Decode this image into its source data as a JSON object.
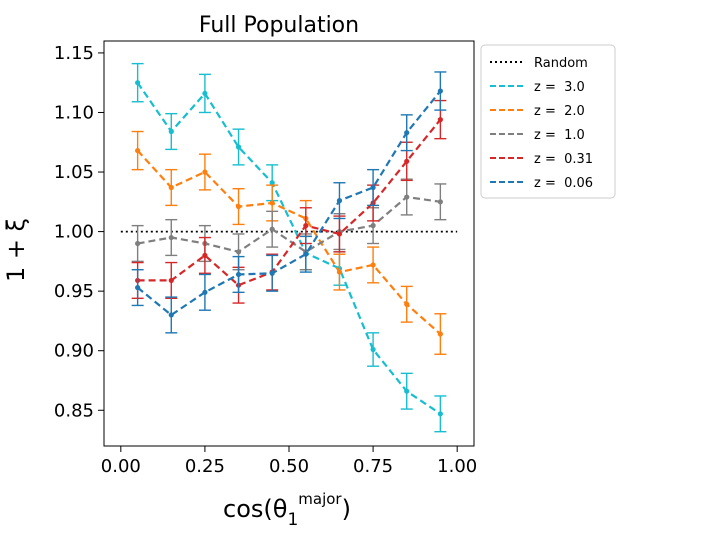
{
  "chart_data": {
    "type": "line",
    "title": "Full Population",
    "xlabel": {
      "base": "cos(θ",
      "sub": "1",
      "sup": "major",
      "close": ")"
    },
    "ylabel": "1 + ξ",
    "xlim": [
      -0.05,
      1.05
    ],
    "ylim": [
      0.82,
      1.16
    ],
    "xticks": [
      0.0,
      0.25,
      0.5,
      0.75,
      1.0
    ],
    "xtick_labels": [
      "0.00",
      "0.25",
      "0.50",
      "0.75",
      "1.00"
    ],
    "yticks": [
      0.85,
      0.9,
      0.95,
      1.0,
      1.05,
      1.1,
      1.15
    ],
    "ytick_labels": [
      "0.85",
      "0.90",
      "0.95",
      "1.00",
      "1.05",
      "1.10",
      "1.15"
    ],
    "grid": false,
    "legend_position": "outside-upper-right",
    "reference_line": {
      "name": "Random",
      "y": 1.0,
      "color": "#000000",
      "style": "dotted"
    },
    "x": [
      0.05,
      0.15,
      0.25,
      0.35,
      0.45,
      0.55,
      0.65,
      0.75,
      0.85,
      0.95
    ],
    "series": [
      {
        "name": "z =  3.0",
        "color": "#17becf",
        "values": [
          1.125,
          1.084,
          1.116,
          1.071,
          1.041,
          0.982,
          0.969,
          0.901,
          0.866,
          0.847
        ],
        "errors": [
          0.016,
          0.015,
          0.016,
          0.015,
          0.015,
          0.014,
          0.014,
          0.014,
          0.015,
          0.015
        ]
      },
      {
        "name": "z =  2.0",
        "color": "#ff7f0e",
        "values": [
          1.068,
          1.037,
          1.05,
          1.021,
          1.024,
          1.011,
          0.966,
          0.972,
          0.939,
          0.914
        ],
        "errors": [
          0.016,
          0.015,
          0.015,
          0.015,
          0.015,
          0.015,
          0.015,
          0.015,
          0.015,
          0.017
        ]
      },
      {
        "name": "z =  1.0",
        "color": "#7f7f7f",
        "values": [
          0.99,
          0.995,
          0.99,
          0.983,
          1.002,
          0.983,
          1.0,
          1.005,
          1.029,
          1.025
        ],
        "errors": [
          0.015,
          0.015,
          0.015,
          0.015,
          0.015,
          0.015,
          0.015,
          0.015,
          0.015,
          0.015
        ]
      },
      {
        "name": "z =  0.31",
        "color": "#d62728",
        "values": [
          0.959,
          0.959,
          0.98,
          0.955,
          0.966,
          1.005,
          0.998,
          1.024,
          1.059,
          1.094
        ],
        "errors": [
          0.015,
          0.015,
          0.015,
          0.015,
          0.015,
          0.015,
          0.015,
          0.015,
          0.016,
          0.016
        ]
      },
      {
        "name": "z =  0.06",
        "color": "#1f77b4",
        "values": [
          0.953,
          0.93,
          0.949,
          0.964,
          0.965,
          0.981,
          1.026,
          1.037,
          1.083,
          1.118
        ],
        "errors": [
          0.015,
          0.015,
          0.015,
          0.015,
          0.015,
          0.015,
          0.015,
          0.015,
          0.015,
          0.016
        ]
      }
    ]
  }
}
